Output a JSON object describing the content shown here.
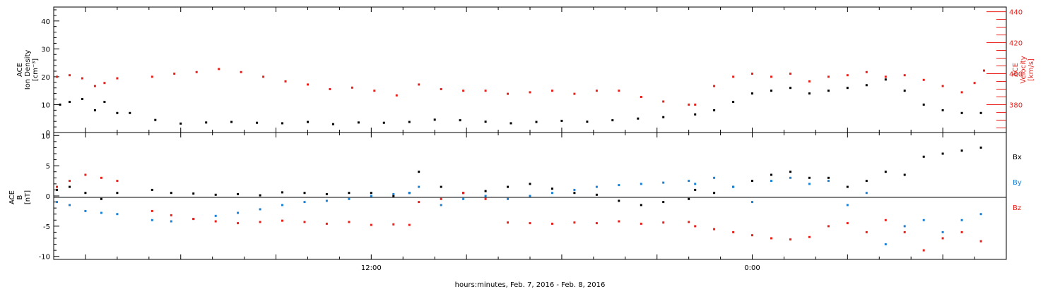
{
  "colors": {
    "black": "#000000",
    "red": "#e8201a",
    "blue": "#1a82d6"
  },
  "xaxis": {
    "label": "hours:minutes, Feb.  7, 2016 - Feb.  8, 2016",
    "range_hours": [
      -10.0,
      20.0
    ],
    "tick_labels": [
      {
        "hour": 0,
        "label": "12:00"
      },
      {
        "hour": 12,
        "label": "0:00"
      }
    ]
  },
  "chart_data": [
    {
      "type": "scatter",
      "panel": "top",
      "left_axis": {
        "label_lines": [
          "ACE",
          "Ion Density",
          "[cm⁻³]"
        ],
        "ylim": [
          0,
          45
        ],
        "ticks": [
          0,
          10,
          20,
          30,
          40
        ]
      },
      "right_axis": {
        "label_lines": [
          "ACE",
          "Velocity",
          "[km/s]"
        ],
        "ylim": [
          362,
          443
        ],
        "ticks": [
          380,
          400,
          420,
          440
        ],
        "color": "red"
      },
      "series": [
        {
          "axis": "left",
          "color": "black",
          "points": [
            [
              -9.8,
              10
            ],
            [
              -9.5,
              11
            ],
            [
              -9.1,
              12
            ],
            [
              -8.7,
              8
            ],
            [
              -8.4,
              11
            ],
            [
              -8.0,
              7
            ],
            [
              -7.6,
              7
            ],
            [
              -6.8,
              4.5
            ],
            [
              -6.0,
              3.2
            ],
            [
              -5.2,
              3.6
            ],
            [
              -4.4,
              3.8
            ],
            [
              -3.6,
              3.5
            ],
            [
              -2.8,
              3.3
            ],
            [
              -2.0,
              3.8
            ],
            [
              -1.2,
              3.0
            ],
            [
              -0.4,
              3.6
            ],
            [
              0.4,
              3.5
            ],
            [
              1.2,
              3.8
            ],
            [
              2.0,
              4.6
            ],
            [
              2.8,
              4.4
            ],
            [
              3.6,
              3.9
            ],
            [
              4.4,
              3.3
            ],
            [
              5.2,
              3.8
            ],
            [
              6.0,
              4.2
            ],
            [
              6.8,
              3.9
            ],
            [
              7.6,
              4.4
            ],
            [
              8.4,
              5.0
            ],
            [
              9.2,
              5.5
            ],
            [
              10.2,
              6.5
            ],
            [
              10.8,
              8
            ],
            [
              11.4,
              11
            ],
            [
              12.0,
              14
            ],
            [
              12.6,
              15
            ],
            [
              13.2,
              16
            ],
            [
              13.8,
              14
            ],
            [
              14.4,
              15
            ],
            [
              15.0,
              16
            ],
            [
              15.6,
              17
            ],
            [
              16.2,
              19
            ],
            [
              16.8,
              15
            ],
            [
              17.4,
              10
            ],
            [
              18.0,
              8
            ],
            [
              18.6,
              7
            ],
            [
              19.2,
              7
            ]
          ]
        },
        {
          "axis": "right",
          "color": "red",
          "points": [
            [
              -9.9,
              398
            ],
            [
              -9.5,
              399
            ],
            [
              -9.1,
              397
            ],
            [
              -8.7,
              392
            ],
            [
              -8.4,
              394
            ],
            [
              -8.0,
              397
            ],
            [
              -6.9,
              398
            ],
            [
              -6.2,
              400
            ],
            [
              -5.5,
              401
            ],
            [
              -4.8,
              403
            ],
            [
              -4.1,
              401
            ],
            [
              -3.4,
              398
            ],
            [
              -2.7,
              395
            ],
            [
              -2.0,
              393
            ],
            [
              -1.3,
              390
            ],
            [
              -0.6,
              391
            ],
            [
              0.1,
              389
            ],
            [
              0.8,
              386
            ],
            [
              1.5,
              393
            ],
            [
              2.2,
              390
            ],
            [
              2.9,
              389
            ],
            [
              3.6,
              389
            ],
            [
              4.3,
              387
            ],
            [
              5.0,
              388
            ],
            [
              5.7,
              389
            ],
            [
              6.4,
              387
            ],
            [
              7.1,
              389
            ],
            [
              7.8,
              389
            ],
            [
              8.5,
              385
            ],
            [
              9.2,
              382
            ],
            [
              10.0,
              380
            ],
            [
              10.2,
              380
            ],
            [
              10.8,
              392
            ],
            [
              11.4,
              398
            ],
            [
              12.0,
              400
            ],
            [
              12.6,
              398
            ],
            [
              13.2,
              400
            ],
            [
              13.8,
              395
            ],
            [
              14.4,
              398
            ],
            [
              15.0,
              399
            ],
            [
              15.6,
              401
            ],
            [
              16.2,
              398
            ],
            [
              16.8,
              399
            ],
            [
              17.4,
              396
            ],
            [
              18.0,
              392
            ],
            [
              18.6,
              388
            ],
            [
              19.0,
              394
            ],
            [
              19.3,
              402
            ]
          ]
        }
      ]
    },
    {
      "type": "scatter",
      "panel": "bottom",
      "left_axis": {
        "label_lines": [
          "ACE",
          "B",
          "[nT]"
        ],
        "ylim": [
          -10.5,
          10.5
        ],
        "ticks": [
          -10,
          -5,
          0,
          5,
          10
        ]
      },
      "series": [
        {
          "name": "Bx",
          "color": "black",
          "points": [
            [
              -9.9,
              1
            ],
            [
              -9.5,
              1.5
            ],
            [
              -9.0,
              0.5
            ],
            [
              -8.5,
              -0.5
            ],
            [
              -8.0,
              0.5
            ],
            [
              -6.9,
              1
            ],
            [
              -6.3,
              0.5
            ],
            [
              -5.6,
              0.4
            ],
            [
              -4.9,
              0.2
            ],
            [
              -4.2,
              0.3
            ],
            [
              -3.5,
              0.1
            ],
            [
              -2.8,
              0.6
            ],
            [
              -2.1,
              0.5
            ],
            [
              -1.4,
              0.3
            ],
            [
              -0.7,
              0.5
            ],
            [
              0.0,
              0.5
            ],
            [
              0.7,
              0
            ],
            [
              1.2,
              0.5
            ],
            [
              1.5,
              4
            ],
            [
              2.2,
              1.5
            ],
            [
              2.9,
              0.5
            ],
            [
              3.6,
              0.8
            ],
            [
              4.3,
              1.5
            ],
            [
              5.0,
              2.0
            ],
            [
              5.7,
              1.2
            ],
            [
              6.4,
              0.5
            ],
            [
              7.1,
              0.2
            ],
            [
              7.8,
              -0.8
            ],
            [
              8.5,
              -1.5
            ],
            [
              9.2,
              -1.0
            ],
            [
              10.0,
              -0.5
            ],
            [
              10.2,
              1
            ],
            [
              10.8,
              0.5
            ],
            [
              11.4,
              1.5
            ],
            [
              12.0,
              2.5
            ],
            [
              12.6,
              3.5
            ],
            [
              13.2,
              4
            ],
            [
              13.8,
              3
            ],
            [
              14.4,
              3
            ],
            [
              15.0,
              1.5
            ],
            [
              15.6,
              2.5
            ],
            [
              16.2,
              4
            ],
            [
              16.8,
              3.5
            ],
            [
              17.4,
              6.5
            ],
            [
              18.0,
              7
            ],
            [
              18.6,
              7.5
            ],
            [
              19.2,
              8
            ]
          ]
        },
        {
          "name": "By",
          "color": "blue",
          "points": [
            [
              -9.9,
              -1
            ],
            [
              -9.5,
              -1.5
            ],
            [
              -9.0,
              -2.5
            ],
            [
              -8.5,
              -2.8
            ],
            [
              -8.0,
              -3
            ],
            [
              -6.9,
              -4
            ],
            [
              -6.3,
              -4.2
            ],
            [
              -5.6,
              -3.8
            ],
            [
              -4.9,
              -3.3
            ],
            [
              -4.2,
              -2.8
            ],
            [
              -3.5,
              -2.2
            ],
            [
              -2.8,
              -1.5
            ],
            [
              -2.1,
              -1.0
            ],
            [
              -1.4,
              -0.8
            ],
            [
              -0.7,
              -0.5
            ],
            [
              0.0,
              0
            ],
            [
              0.7,
              0.3
            ],
            [
              1.2,
              0.5
            ],
            [
              1.5,
              1.5
            ],
            [
              2.2,
              -1.5
            ],
            [
              2.9,
              -0.5
            ],
            [
              3.6,
              0
            ],
            [
              4.3,
              -0.5
            ],
            [
              5.0,
              0
            ],
            [
              5.7,
              0.5
            ],
            [
              6.4,
              1.0
            ],
            [
              7.1,
              1.5
            ],
            [
              7.8,
              1.8
            ],
            [
              8.5,
              2.0
            ],
            [
              9.2,
              2.2
            ],
            [
              10.0,
              2.5
            ],
            [
              10.2,
              2
            ],
            [
              10.8,
              3
            ],
            [
              11.4,
              1.5
            ],
            [
              12.0,
              -1
            ],
            [
              12.6,
              2.5
            ],
            [
              13.2,
              3
            ],
            [
              13.8,
              2
            ],
            [
              14.4,
              2.5
            ],
            [
              15.0,
              -1.5
            ],
            [
              15.6,
              0.5
            ],
            [
              16.2,
              -8
            ],
            [
              16.8,
              -5
            ],
            [
              17.4,
              -4
            ],
            [
              18.0,
              -6
            ],
            [
              18.6,
              -4
            ],
            [
              19.2,
              -3
            ]
          ]
        },
        {
          "name": "Bz",
          "color": "red",
          "points": [
            [
              -9.9,
              1.5
            ],
            [
              -9.5,
              2.5
            ],
            [
              -9.0,
              3.5
            ],
            [
              -8.5,
              3
            ],
            [
              -8.0,
              2.5
            ],
            [
              -6.9,
              -2.5
            ],
            [
              -6.3,
              -3.2
            ],
            [
              -5.6,
              -3.8
            ],
            [
              -4.9,
              -4.2
            ],
            [
              -4.2,
              -4.5
            ],
            [
              -3.5,
              -4.3
            ],
            [
              -2.8,
              -4.1
            ],
            [
              -2.1,
              -4.3
            ],
            [
              -1.4,
              -4.6
            ],
            [
              -0.7,
              -4.3
            ],
            [
              0.0,
              -4.8
            ],
            [
              0.7,
              -4.7
            ],
            [
              1.2,
              -4.8
            ],
            [
              1.5,
              -1
            ],
            [
              2.2,
              -0.5
            ],
            [
              2.9,
              0.5
            ],
            [
              3.6,
              -0.5
            ],
            [
              4.3,
              -4.4
            ],
            [
              5.0,
              -4.5
            ],
            [
              5.7,
              -4.6
            ],
            [
              6.4,
              -4.4
            ],
            [
              7.1,
              -4.5
            ],
            [
              7.8,
              -4.2
            ],
            [
              8.5,
              -4.6
            ],
            [
              9.2,
              -4.4
            ],
            [
              10.0,
              -4.3
            ],
            [
              10.2,
              -5
            ],
            [
              10.8,
              -5.5
            ],
            [
              11.4,
              -6.0
            ],
            [
              12.0,
              -6.5
            ],
            [
              12.6,
              -7.0
            ],
            [
              13.2,
              -7.2
            ],
            [
              13.8,
              -6.8
            ],
            [
              14.4,
              -5.0
            ],
            [
              15.0,
              -4.5
            ],
            [
              15.6,
              -6
            ],
            [
              16.2,
              -4
            ],
            [
              16.8,
              -6
            ],
            [
              17.4,
              -9
            ],
            [
              18.0,
              -7
            ],
            [
              18.6,
              -6
            ],
            [
              19.2,
              -7.5
            ]
          ]
        }
      ]
    }
  ]
}
